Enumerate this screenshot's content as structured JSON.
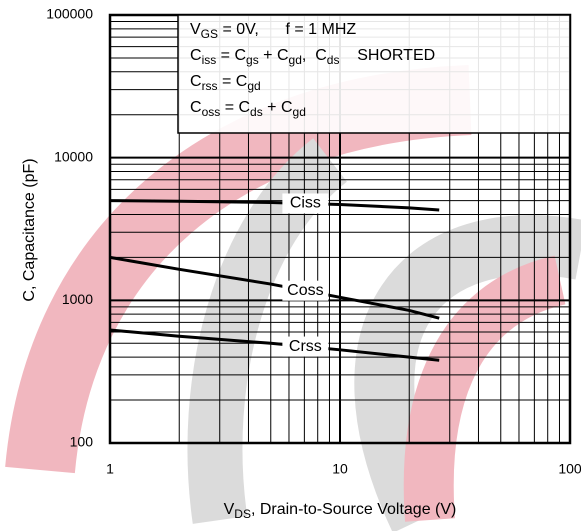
{
  "chart_data": {
    "type": "line",
    "ylabel": "C, Capacitance (pF)",
    "xlabel": [
      "V",
      "DS",
      ", Drain-to-Source Voltage (V)"
    ],
    "annotation": [
      [
        "V",
        "GS",
        " = 0V,      f = 1 MHZ"
      ],
      [
        "C",
        "iss",
        " = C",
        "gs",
        " + C",
        "gd",
        ",  C",
        "ds",
        "    SHORTED"
      ],
      [
        "C",
        "rss",
        " = C",
        "gd"
      ],
      [
        "C",
        "oss",
        " = C",
        "ds",
        " + C",
        "gd"
      ]
    ],
    "x": [
      1,
      2,
      5,
      10,
      20,
      27
    ],
    "series": [
      {
        "name": "Ciss",
        "color": "#000000",
        "values": [
          5000,
          4950,
          4850,
          4700,
          4450,
          4300
        ]
      },
      {
        "name": "Coss",
        "color": "#000000",
        "values": [
          2000,
          1650,
          1300,
          1050,
          850,
          750
        ]
      },
      {
        "name": "Crss",
        "color": "#000000",
        "values": [
          620,
          560,
          500,
          450,
          400,
          380
        ]
      }
    ],
    "xlim": [
      1,
      100
    ],
    "xticks": [
      1,
      10,
      100
    ],
    "ylim": [
      100,
      100000
    ],
    "yticks": [
      100,
      1000,
      10000,
      100000
    ],
    "xscale": "log",
    "yscale": "log",
    "grid": true
  }
}
